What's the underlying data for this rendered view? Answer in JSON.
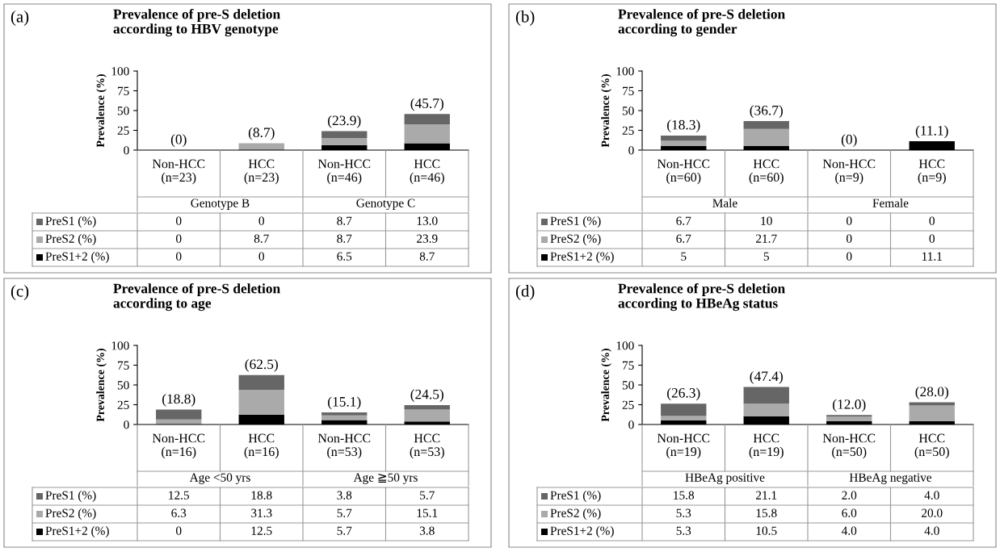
{
  "chart_data": [
    {
      "type": "bar",
      "stacked": true,
      "legend": "bottom left",
      "title": "Prevalence of pre-S deletion\naccording to HBV genotype",
      "ylabel": "Prevalence (%)",
      "annotations": [
        "(a)",
        "Genotype B",
        "Genotype C"
      ],
      "categories": [
        "Non-HCC\n(n=23)",
        "HCC\n(n=23)",
        "Non-HCC\n(n=46)",
        "HCC\n(n=46)"
      ],
      "ylim": [
        0,
        100
      ],
      "yticks": [
        0,
        25,
        50,
        75,
        100
      ],
      "totals": [
        "(0)",
        "(8.7)",
        "(23.9)",
        "(45.7)"
      ],
      "series": [
        {
          "name": "PreS1+2 (%)",
          "color": "#000000",
          "values": [
            0,
            0,
            6.5,
            8.7
          ],
          "value_labels": [
            "0",
            "0",
            "6.5",
            "8.7"
          ]
        },
        {
          "name": "PreS2 (%)",
          "color": "#aaaaaa",
          "values": [
            0,
            8.7,
            8.7,
            23.9
          ],
          "value_labels": [
            "0",
            "8.7",
            "8.7",
            "23.9"
          ]
        },
        {
          "name": "PreS1 (%)",
          "color": "#666666",
          "values": [
            0,
            0,
            8.7,
            13.0
          ],
          "value_labels": [
            "0",
            "0",
            "8.7",
            "13.0"
          ]
        }
      ]
    },
    {
      "type": "bar",
      "stacked": true,
      "legend": "bottom left",
      "title": "Prevalence of pre-S deletion\naccording to gender",
      "ylabel": "Prevalence (%)",
      "annotations": [
        "(b)",
        "Male",
        "Female"
      ],
      "categories": [
        "Non-HCC\n(n=60)",
        "HCC\n(n=60)",
        "Non-HCC\n(n=9)",
        "HCC\n(n=9)"
      ],
      "ylim": [
        0,
        100
      ],
      "yticks": [
        0,
        25,
        50,
        75,
        100
      ],
      "totals": [
        "(18.3)",
        "(36.7)",
        "(0)",
        "(11.1)"
      ],
      "series": [
        {
          "name": "PreS1+2 (%)",
          "color": "#000000",
          "values": [
            5,
            5,
            0,
            11.1
          ],
          "value_labels": [
            "5",
            "5",
            "0",
            "11.1"
          ]
        },
        {
          "name": "PreS2 (%)",
          "color": "#aaaaaa",
          "values": [
            6.7,
            21.7,
            0,
            0
          ],
          "value_labels": [
            "6.7",
            "21.7",
            "0",
            "0"
          ]
        },
        {
          "name": "PreS1 (%)",
          "color": "#666666",
          "values": [
            6.7,
            10,
            0,
            0
          ],
          "value_labels": [
            "6.7",
            "10",
            "0",
            "0"
          ]
        }
      ]
    },
    {
      "type": "bar",
      "stacked": true,
      "legend": "bottom left",
      "title": "Prevalence of pre-S deletion\naccording to age",
      "ylabel": "Prevalence (%)",
      "annotations": [
        "(c)",
        "Age <50 yrs",
        "Age ≧50 yrs"
      ],
      "categories": [
        "Non-HCC\n(n=16)",
        "HCC\n(n=16)",
        "Non-HCC\n(n=53)",
        "HCC\n(n=53)"
      ],
      "ylim": [
        0,
        100
      ],
      "yticks": [
        0,
        25,
        50,
        75,
        100
      ],
      "totals": [
        "(18.8)",
        "(62.5)",
        "(15.1)",
        "(24.5)"
      ],
      "series": [
        {
          "name": "PreS1+2 (%)",
          "color": "#000000",
          "values": [
            0,
            12.5,
            5.7,
            3.8
          ],
          "value_labels": [
            "0",
            "12.5",
            "5.7",
            "3.8"
          ]
        },
        {
          "name": "PreS2 (%)",
          "color": "#aaaaaa",
          "values": [
            6.3,
            31.3,
            5.7,
            15.1
          ],
          "value_labels": [
            "6.3",
            "31.3",
            "5.7",
            "15.1"
          ]
        },
        {
          "name": "PreS1 (%)",
          "color": "#666666",
          "values": [
            12.5,
            18.8,
            3.8,
            5.7
          ],
          "value_labels": [
            "12.5",
            "18.8",
            "3.8",
            "5.7"
          ]
        }
      ]
    },
    {
      "type": "bar",
      "stacked": true,
      "legend": "bottom left",
      "title": "Prevalence of pre-S deletion\naccording to HBeAg status",
      "ylabel": "Prevalence (%)",
      "annotations": [
        "(d)",
        "HBeAg positive",
        "HBeAg negative"
      ],
      "categories": [
        "Non-HCC\n(n=19)",
        "HCC\n(n=19)",
        "Non-HCC\n(n=50)",
        "HCC\n(n=50)"
      ],
      "ylim": [
        0,
        100
      ],
      "yticks": [
        0,
        25,
        50,
        75,
        100
      ],
      "totals": [
        "(26.3)",
        "(47.4)",
        "(12.0)",
        "(28.0)"
      ],
      "series": [
        {
          "name": "PreS1+2 (%)",
          "color": "#000000",
          "values": [
            5.3,
            10.5,
            4.0,
            4.0
          ],
          "value_labels": [
            "5.3",
            "10.5",
            "4.0",
            "4.0"
          ]
        },
        {
          "name": "PreS2 (%)",
          "color": "#aaaaaa",
          "values": [
            5.3,
            15.8,
            6.0,
            20.0
          ],
          "value_labels": [
            "5.3",
            "15.8",
            "6.0",
            "20.0"
          ]
        },
        {
          "name": "PreS1 (%)",
          "color": "#666666",
          "values": [
            15.8,
            21.1,
            2.0,
            4.0
          ],
          "value_labels": [
            "15.8",
            "21.1",
            "2.0",
            "4.0"
          ]
        }
      ]
    }
  ]
}
